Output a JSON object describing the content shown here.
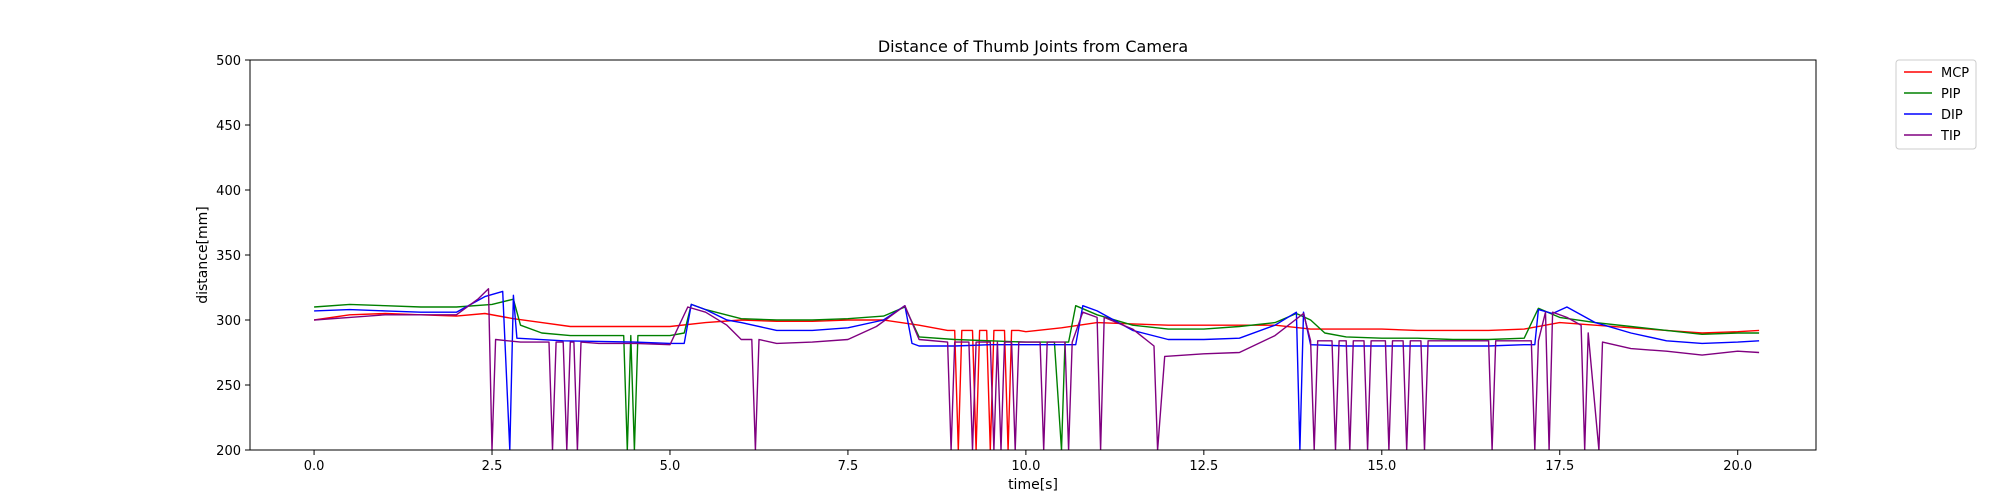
{
  "chart_data": {
    "type": "line",
    "title": "Distance of Thumb Joints from Camera",
    "xlabel": "time[s]",
    "ylabel": "distance[mm]",
    "xlim": [
      -0.9,
      21.1
    ],
    "ylim": [
      200,
      500
    ],
    "xticks": [
      "0.0",
      "2.5",
      "5.0",
      "7.5",
      "10.0",
      "12.5",
      "15.0",
      "17.5",
      "20.0"
    ],
    "yticks": [
      "200",
      "250",
      "300",
      "350",
      "400",
      "450",
      "500"
    ],
    "grid": false,
    "legend_position": "outside-top-right",
    "series": [
      {
        "name": "MCP",
        "color": "#ff0000",
        "points": [
          [
            0,
            300
          ],
          [
            0.5,
            304
          ],
          [
            1.0,
            305
          ],
          [
            1.5,
            304
          ],
          [
            2.0,
            303
          ],
          [
            2.4,
            305
          ],
          [
            2.8,
            301
          ],
          [
            3.2,
            298
          ],
          [
            3.6,
            295
          ],
          [
            4.0,
            295
          ],
          [
            4.5,
            295
          ],
          [
            5.0,
            295
          ],
          [
            5.5,
            298
          ],
          [
            6.0,
            300
          ],
          [
            6.5,
            299
          ],
          [
            7.0,
            299
          ],
          [
            7.5,
            300
          ],
          [
            8.0,
            300
          ],
          [
            8.5,
            296
          ],
          [
            8.9,
            292
          ],
          [
            9.0,
            292
          ],
          [
            9.05,
            200
          ],
          [
            9.1,
            292
          ],
          [
            9.25,
            292
          ],
          [
            9.3,
            200
          ],
          [
            9.35,
            292
          ],
          [
            9.45,
            292
          ],
          [
            9.5,
            200
          ],
          [
            9.55,
            292
          ],
          [
            9.7,
            292
          ],
          [
            9.75,
            200
          ],
          [
            9.8,
            292
          ],
          [
            9.9,
            292
          ],
          [
            10.0,
            291
          ],
          [
            10.5,
            294
          ],
          [
            11.0,
            298
          ],
          [
            11.5,
            297
          ],
          [
            12.0,
            296
          ],
          [
            12.5,
            296
          ],
          [
            13.0,
            296
          ],
          [
            13.5,
            296
          ],
          [
            14.0,
            293
          ],
          [
            14.5,
            293
          ],
          [
            15.0,
            293
          ],
          [
            15.5,
            292
          ],
          [
            16.0,
            292
          ],
          [
            16.5,
            292
          ],
          [
            17.0,
            293
          ],
          [
            17.5,
            298
          ],
          [
            18.0,
            296
          ],
          [
            18.5,
            294
          ],
          [
            19.0,
            292
          ],
          [
            19.5,
            290
          ],
          [
            20.0,
            291
          ],
          [
            20.3,
            292
          ]
        ]
      },
      {
        "name": "PIP",
        "color": "#008000",
        "points": [
          [
            0,
            310
          ],
          [
            0.5,
            312
          ],
          [
            1.0,
            311
          ],
          [
            1.5,
            310
          ],
          [
            2.0,
            310
          ],
          [
            2.5,
            312
          ],
          [
            2.8,
            316
          ],
          [
            2.9,
            296
          ],
          [
            3.2,
            290
          ],
          [
            3.6,
            288
          ],
          [
            4.0,
            288
          ],
          [
            4.35,
            288
          ],
          [
            4.4,
            200
          ],
          [
            4.45,
            288
          ],
          [
            4.5,
            200
          ],
          [
            4.55,
            288
          ],
          [
            5.0,
            288
          ],
          [
            5.2,
            290
          ],
          [
            5.3,
            312
          ],
          [
            5.5,
            308
          ],
          [
            6.0,
            301
          ],
          [
            6.5,
            300
          ],
          [
            7.0,
            300
          ],
          [
            7.5,
            301
          ],
          [
            8.0,
            303
          ],
          [
            8.3,
            310
          ],
          [
            8.5,
            287
          ],
          [
            9.0,
            285
          ],
          [
            9.5,
            284
          ],
          [
            10.0,
            283
          ],
          [
            10.4,
            283
          ],
          [
            10.5,
            200
          ],
          [
            10.55,
            283
          ],
          [
            10.6,
            283
          ],
          [
            10.7,
            311
          ],
          [
            11.0,
            304
          ],
          [
            11.5,
            296
          ],
          [
            12.0,
            293
          ],
          [
            12.5,
            293
          ],
          [
            13.0,
            295
          ],
          [
            13.5,
            298
          ],
          [
            13.8,
            305
          ],
          [
            14.0,
            300
          ],
          [
            14.2,
            290
          ],
          [
            14.5,
            287
          ],
          [
            15.0,
            286
          ],
          [
            15.5,
            286
          ],
          [
            16.0,
            285
          ],
          [
            16.5,
            285
          ],
          [
            17.0,
            286
          ],
          [
            17.2,
            309
          ],
          [
            17.5,
            302
          ],
          [
            18.0,
            298
          ],
          [
            18.5,
            295
          ],
          [
            19.0,
            292
          ],
          [
            19.5,
            289
          ],
          [
            20.0,
            290
          ],
          [
            20.3,
            290
          ]
        ]
      },
      {
        "name": "DIP",
        "color": "#0000ff",
        "points": [
          [
            0,
            307
          ],
          [
            0.5,
            308
          ],
          [
            1.0,
            307
          ],
          [
            1.5,
            306
          ],
          [
            2.0,
            306
          ],
          [
            2.4,
            318
          ],
          [
            2.65,
            322
          ],
          [
            2.75,
            200
          ],
          [
            2.8,
            319
          ],
          [
            2.85,
            286
          ],
          [
            3.5,
            284
          ],
          [
            4.5,
            283
          ],
          [
            5.0,
            282
          ],
          [
            5.2,
            282
          ],
          [
            5.3,
            312
          ],
          [
            5.5,
            308
          ],
          [
            5.8,
            300
          ],
          [
            6.0,
            298
          ],
          [
            6.5,
            292
          ],
          [
            7.0,
            292
          ],
          [
            7.5,
            294
          ],
          [
            8.0,
            300
          ],
          [
            8.3,
            311
          ],
          [
            8.4,
            282
          ],
          [
            8.5,
            280
          ],
          [
            9.0,
            280
          ],
          [
            9.5,
            281
          ],
          [
            10.0,
            281
          ],
          [
            10.5,
            281
          ],
          [
            10.7,
            281
          ],
          [
            10.8,
            311
          ],
          [
            11.0,
            307
          ],
          [
            11.5,
            292
          ],
          [
            12.0,
            285
          ],
          [
            12.5,
            285
          ],
          [
            13.0,
            286
          ],
          [
            13.5,
            296
          ],
          [
            13.8,
            306
          ],
          [
            13.85,
            200
          ],
          [
            13.9,
            306
          ],
          [
            14.0,
            281
          ],
          [
            14.5,
            280
          ],
          [
            15.0,
            280
          ],
          [
            15.5,
            280
          ],
          [
            16.0,
            280
          ],
          [
            16.5,
            280
          ],
          [
            17.0,
            281
          ],
          [
            17.15,
            281
          ],
          [
            17.2,
            308
          ],
          [
            17.4,
            305
          ],
          [
            17.6,
            310
          ],
          [
            18.0,
            298
          ],
          [
            18.5,
            290
          ],
          [
            19.0,
            284
          ],
          [
            19.5,
            282
          ],
          [
            20.0,
            283
          ],
          [
            20.3,
            284
          ]
        ]
      },
      {
        "name": "TIP",
        "color": "#800080",
        "points": [
          [
            0,
            300
          ],
          [
            0.5,
            302
          ],
          [
            1.0,
            304
          ],
          [
            1.5,
            304
          ],
          [
            2.0,
            304
          ],
          [
            2.3,
            316
          ],
          [
            2.45,
            324
          ],
          [
            2.5,
            200
          ],
          [
            2.55,
            285
          ],
          [
            2.9,
            283
          ],
          [
            3.3,
            283
          ],
          [
            3.35,
            200
          ],
          [
            3.4,
            283
          ],
          [
            3.5,
            283
          ],
          [
            3.55,
            200
          ],
          [
            3.6,
            283
          ],
          [
            3.65,
            283
          ],
          [
            3.7,
            200
          ],
          [
            3.75,
            283
          ],
          [
            4.0,
            282
          ],
          [
            4.5,
            282
          ],
          [
            5.0,
            281
          ],
          [
            5.25,
            310
          ],
          [
            5.5,
            306
          ],
          [
            5.8,
            296
          ],
          [
            6.0,
            285
          ],
          [
            6.15,
            285
          ],
          [
            6.2,
            200
          ],
          [
            6.25,
            285
          ],
          [
            6.5,
            282
          ],
          [
            7.0,
            283
          ],
          [
            7.5,
            285
          ],
          [
            7.9,
            295
          ],
          [
            8.3,
            311
          ],
          [
            8.5,
            285
          ],
          [
            8.9,
            283
          ],
          [
            8.95,
            200
          ],
          [
            9.0,
            283
          ],
          [
            9.2,
            283
          ],
          [
            9.25,
            200
          ],
          [
            9.3,
            283
          ],
          [
            9.5,
            283
          ],
          [
            9.55,
            200
          ],
          [
            9.6,
            283
          ],
          [
            9.65,
            200
          ],
          [
            9.7,
            283
          ],
          [
            9.8,
            283
          ],
          [
            9.85,
            200
          ],
          [
            9.9,
            283
          ],
          [
            10.2,
            283
          ],
          [
            10.25,
            200
          ],
          [
            10.3,
            283
          ],
          [
            10.55,
            283
          ],
          [
            10.6,
            200
          ],
          [
            10.65,
            283
          ],
          [
            10.8,
            306
          ],
          [
            11.0,
            302
          ],
          [
            11.05,
            200
          ],
          [
            11.1,
            302
          ],
          [
            11.5,
            293
          ],
          [
            11.8,
            280
          ],
          [
            11.85,
            200
          ],
          [
            11.95,
            272
          ],
          [
            12.5,
            274
          ],
          [
            13.0,
            275
          ],
          [
            13.5,
            288
          ],
          [
            13.9,
            305
          ],
          [
            14.0,
            284
          ],
          [
            14.05,
            200
          ],
          [
            14.1,
            284
          ],
          [
            14.3,
            284
          ],
          [
            14.35,
            200
          ],
          [
            14.4,
            284
          ],
          [
            14.5,
            284
          ],
          [
            14.55,
            200
          ],
          [
            14.6,
            284
          ],
          [
            14.75,
            284
          ],
          [
            14.8,
            200
          ],
          [
            14.85,
            284
          ],
          [
            15.05,
            284
          ],
          [
            15.1,
            200
          ],
          [
            15.15,
            284
          ],
          [
            15.3,
            284
          ],
          [
            15.35,
            200
          ],
          [
            15.4,
            284
          ],
          [
            15.55,
            284
          ],
          [
            15.6,
            200
          ],
          [
            15.65,
            284
          ],
          [
            16.5,
            284
          ],
          [
            16.55,
            200
          ],
          [
            16.6,
            284
          ],
          [
            17.1,
            284
          ],
          [
            17.15,
            200
          ],
          [
            17.2,
            284
          ],
          [
            17.3,
            306
          ],
          [
            17.35,
            200
          ],
          [
            17.4,
            306
          ],
          [
            17.6,
            302
          ],
          [
            17.8,
            296
          ],
          [
            17.85,
            200
          ],
          [
            17.9,
            290
          ],
          [
            18.05,
            200
          ],
          [
            18.1,
            283
          ],
          [
            18.5,
            278
          ],
          [
            19.0,
            276
          ],
          [
            19.5,
            273
          ],
          [
            20.0,
            276
          ],
          [
            20.3,
            275
          ]
        ]
      }
    ]
  }
}
